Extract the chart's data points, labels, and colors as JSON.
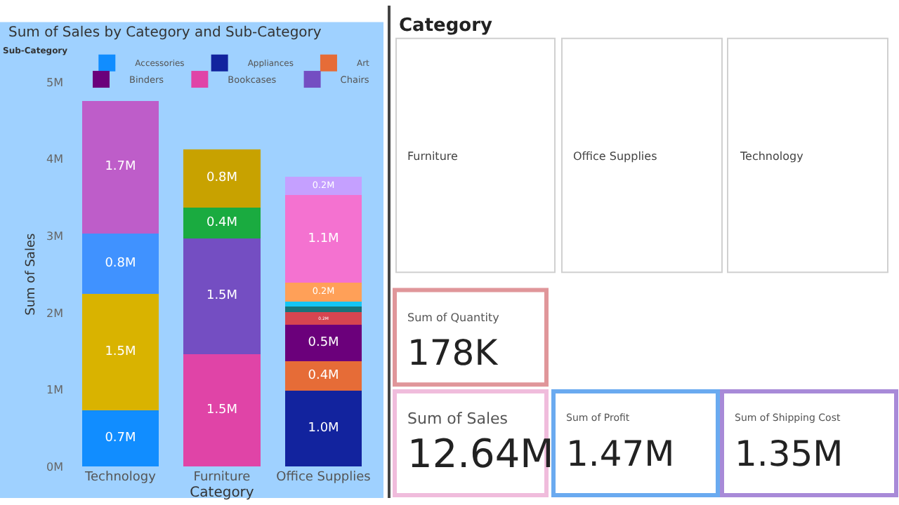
{
  "chart_data": [
    {
      "type": "bar",
      "title": "Sum of Sales by Category and Sub-Category",
      "xlabel": "Category",
      "ylabel": "Sum of Sales",
      "legend_title": "Sub-Category",
      "legend": "top",
      "stacked": true,
      "categories": [
        "Technology",
        "Furniture",
        "Office Supplies"
      ],
      "ylim": [
        0,
        5
      ],
      "yticks": [
        {
          "value": 0,
          "label": "0M"
        },
        {
          "value": 1,
          "label": "1M"
        },
        {
          "value": 2,
          "label": "2M"
        },
        {
          "value": 3,
          "label": "3M"
        },
        {
          "value": 4,
          "label": "4M"
        },
        {
          "value": 5,
          "label": "5M"
        }
      ],
      "grid": false,
      "series": [
        {
          "name": "Accessories",
          "color": "#118dff",
          "values": [
            0.73,
            null,
            null
          ],
          "value_labels": [
            "0.7M",
            null,
            null
          ]
        },
        {
          "name": "Appliances",
          "color": "#12239e",
          "values": [
            null,
            null,
            0.99
          ],
          "value_labels": [
            null,
            null,
            "1.0M"
          ]
        },
        {
          "name": "Art",
          "color": "#e66c37",
          "values": [
            null,
            null,
            0.38
          ],
          "value_labels": [
            null,
            null,
            "0.4M"
          ]
        },
        {
          "name": "Binders",
          "color": "#6b007b",
          "values": [
            null,
            null,
            0.47
          ],
          "value_labels": [
            null,
            null,
            "0.5M"
          ]
        },
        {
          "name": "Bookcases",
          "color": "#e044a7",
          "values": [
            null,
            1.46,
            null
          ],
          "value_labels": [
            null,
            "1.5M",
            null
          ]
        },
        {
          "name": "Chairs",
          "color": "#744ec2",
          "values": [
            null,
            1.51,
            null
          ],
          "value_labels": [
            null,
            "1.5M",
            null
          ]
        },
        {
          "color": "#d9b300",
          "values": [
            1.52,
            null,
            null
          ],
          "value_labels": [
            "1.5M",
            null,
            null
          ]
        },
        {
          "color": "#d64550",
          "values": [
            null,
            null,
            0.17
          ],
          "value_labels": [
            null,
            null,
            "0.2M"
          ]
        },
        {
          "color": "#197278",
          "values": [
            null,
            null,
            0.07
          ],
          "value_labels": [
            null,
            null,
            null
          ]
        },
        {
          "color": "#1aab40",
          "values": [
            null,
            0.4,
            null
          ],
          "value_labels": [
            null,
            "0.4M",
            null
          ]
        },
        {
          "color": "#15c6f4",
          "values": [
            null,
            null,
            0.07
          ],
          "value_labels": [
            null,
            null,
            null
          ]
        },
        {
          "color": "#4092ff",
          "values": [
            0.78,
            null,
            null
          ],
          "value_labels": [
            "0.8M",
            null,
            null
          ]
        },
        {
          "color": "#ffa058",
          "values": [
            null,
            null,
            0.24
          ],
          "value_labels": [
            null,
            null,
            "0.2M"
          ]
        },
        {
          "color": "#be5dc9",
          "values": [
            1.73,
            null,
            null
          ],
          "value_labels": [
            "1.7M",
            null,
            null
          ]
        },
        {
          "color": "#f472d0",
          "values": [
            null,
            null,
            1.14
          ],
          "value_labels": [
            null,
            null,
            "1.1M"
          ]
        },
        {
          "color": "#c5a0ff",
          "values": [
            null,
            null,
            0.24
          ],
          "value_labels": [
            null,
            null,
            "0.2M"
          ]
        },
        {
          "color": "#c8a200",
          "values": [
            null,
            0.76,
            null
          ],
          "value_labels": [
            null,
            "0.8M",
            null
          ]
        }
      ]
    },
    {
      "type": "other",
      "title": "Category",
      "annotations": [
        "Furniture",
        "Office Supplies",
        "Technology"
      ]
    },
    {
      "type": "other",
      "annotations": [
        "Sum of Quantity",
        "178K",
        "Sum of Sales",
        "12.64M",
        "Sum of Profit",
        "1.47M",
        "Sum of Shipping Cost",
        "1.35M"
      ],
      "colors": [
        "#e0969a",
        "#f0bcdc",
        "#6aaaf0",
        "#a88ad8"
      ]
    }
  ]
}
